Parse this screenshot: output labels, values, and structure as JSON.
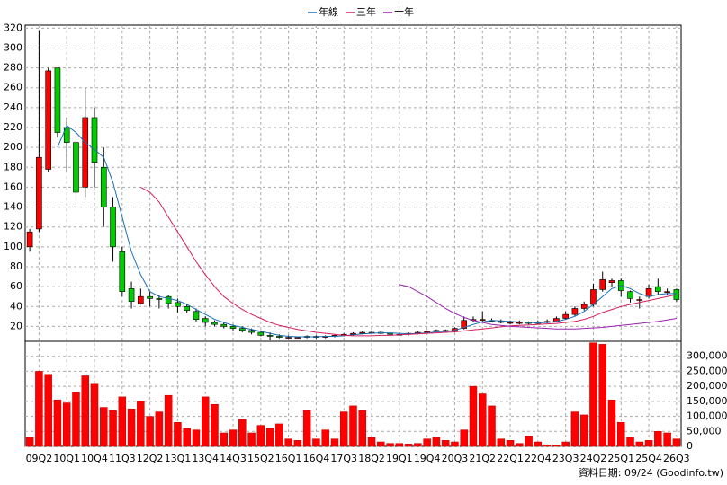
{
  "chart_data": [
    {
      "type": "candlestick",
      "categories": [
        null,
        "09Q2",
        null,
        null,
        "10Q1",
        null,
        null,
        "10Q4",
        null,
        null,
        "11Q3",
        null,
        null,
        "12Q2",
        null,
        null,
        "13Q1",
        null,
        null,
        "13Q4",
        null,
        null,
        "14Q3",
        null,
        null,
        "15Q2",
        null,
        null,
        "16Q1",
        null,
        null,
        "16Q4",
        null,
        null,
        "17Q3",
        null,
        null,
        "18Q2",
        null,
        null,
        "19Q1",
        null,
        null,
        "19Q4",
        null,
        null,
        "20Q3",
        null,
        null,
        "21Q2",
        null,
        null,
        "22Q1",
        null,
        null,
        "22Q4",
        null,
        null,
        "23Q3",
        null,
        null,
        "24Q2",
        null,
        null,
        "25Q1",
        null,
        null,
        "25Q4",
        null,
        null,
        "26Q3"
      ],
      "open": [
        100,
        118,
        178,
        280,
        220,
        205,
        160,
        230,
        180,
        140,
        95,
        58,
        43,
        50,
        48,
        50,
        44,
        40,
        35,
        28,
        24,
        22,
        20,
        18,
        16,
        14,
        11,
        10,
        9,
        9,
        9,
        10,
        9,
        10,
        11,
        12,
        13,
        14,
        14,
        13,
        12,
        12,
        13,
        14,
        15,
        16,
        15,
        18,
        26,
        27,
        26,
        25,
        24,
        23,
        24,
        23,
        24,
        25,
        28,
        32,
        38,
        42,
        57,
        64,
        66,
        55,
        47,
        50,
        60,
        55,
        57
      ],
      "high": [
        118,
        318,
        280,
        280,
        230,
        220,
        260,
        240,
        200,
        150,
        100,
        65,
        58,
        55,
        52,
        52,
        48,
        42,
        38,
        30,
        26,
        24,
        22,
        20,
        18,
        16,
        14,
        12,
        11,
        10,
        11,
        11,
        11,
        12,
        13,
        14,
        15,
        16,
        15,
        14,
        13,
        14,
        15,
        16,
        17,
        17,
        19,
        30,
        30,
        35,
        28,
        27,
        26,
        26,
        25,
        26,
        27,
        30,
        35,
        40,
        45,
        63,
        75,
        68,
        68,
        56,
        50,
        62,
        68,
        58,
        58
      ],
      "low": [
        95,
        115,
        175,
        210,
        175,
        140,
        150,
        160,
        120,
        85,
        50,
        38,
        42,
        40,
        38,
        38,
        34,
        33,
        25,
        20,
        20,
        18,
        16,
        14,
        12,
        10,
        6,
        8,
        8,
        8,
        8,
        8,
        8,
        9,
        10,
        11,
        12,
        13,
        12,
        11,
        11,
        11,
        12,
        13,
        14,
        14,
        14,
        17,
        24,
        25,
        24,
        23,
        22,
        22,
        22,
        22,
        23,
        24,
        27,
        30,
        36,
        40,
        55,
        60,
        50,
        44,
        38,
        48,
        52,
        52,
        45
      ],
      "close": [
        115,
        190,
        277,
        215,
        205,
        155,
        230,
        185,
        140,
        100,
        55,
        45,
        50,
        48,
        47,
        43,
        40,
        36,
        27,
        24,
        22,
        20,
        18,
        16,
        14,
        11,
        10,
        9,
        9,
        9,
        10,
        9,
        10,
        11,
        12,
        13,
        14,
        14,
        13,
        12,
        12,
        13,
        14,
        15,
        16,
        15,
        18,
        26,
        27,
        27,
        25,
        24,
        24,
        24,
        23,
        24,
        25,
        28,
        32,
        38,
        42,
        57,
        67,
        66,
        56,
        48,
        47,
        58,
        55,
        55,
        47
      ],
      "up_color": "#ff0000",
      "down_color": "#00cc00",
      "series": [
        {
          "name": "年線",
          "color": "#1a6fb4",
          "values": [
            null,
            null,
            null,
            200,
            222,
            215,
            205,
            198,
            190,
            165,
            130,
            95,
            72,
            55,
            50,
            48,
            46,
            42,
            37,
            32,
            27,
            24,
            21,
            19,
            17,
            15,
            13,
            11,
            10,
            9.5,
            9.5,
            9.5,
            10,
            10,
            10.5,
            11.5,
            12.5,
            13,
            13.5,
            13.5,
            13,
            12.5,
            13,
            13.5,
            14.5,
            15,
            16,
            19,
            22,
            24.5,
            26,
            25.5,
            25,
            24.5,
            24,
            23.5,
            24,
            25,
            27,
            30,
            35,
            42,
            50,
            58,
            61,
            58,
            53,
            50,
            52,
            53,
            53
          ]
        },
        {
          "name": "三年",
          "color": "#d6205a",
          "values": [
            null,
            null,
            null,
            null,
            null,
            null,
            null,
            null,
            null,
            null,
            null,
            null,
            160,
            155,
            145,
            130,
            115,
            100,
            85,
            72,
            60,
            50,
            43,
            37,
            32,
            28,
            24,
            21,
            19,
            17,
            15.5,
            14,
            13,
            12,
            11,
            10.5,
            10.5,
            10.5,
            11,
            11,
            11.5,
            12,
            12.5,
            13,
            13.5,
            14,
            14.5,
            15.5,
            16.5,
            17.5,
            18.5,
            19.5,
            20.5,
            21,
            21.5,
            22,
            22.5,
            23,
            24,
            25,
            27,
            30,
            34,
            37,
            40,
            42,
            44,
            46,
            48,
            50,
            52
          ]
        },
        {
          "name": "十年",
          "color": "#9a22b0",
          "values": [
            null,
            null,
            null,
            null,
            null,
            null,
            null,
            null,
            null,
            null,
            null,
            null,
            null,
            null,
            null,
            null,
            null,
            null,
            null,
            null,
            null,
            null,
            null,
            null,
            null,
            null,
            null,
            null,
            null,
            null,
            null,
            null,
            null,
            null,
            null,
            null,
            null,
            null,
            null,
            null,
            62,
            60,
            55,
            50,
            44,
            38,
            33,
            29,
            26,
            24,
            22,
            21,
            20,
            19.5,
            19,
            18.5,
            18,
            17.5,
            17.5,
            17.5,
            18,
            18.5,
            19,
            20,
            21,
            22,
            23,
            24,
            25,
            26.5,
            28
          ]
        }
      ],
      "ylim": [
        5,
        323
      ],
      "yticks": [
        20,
        40,
        60,
        80,
        100,
        120,
        140,
        160,
        180,
        200,
        220,
        240,
        260,
        280,
        300,
        320
      ],
      "grid": true,
      "legend": "top"
    },
    {
      "type": "bar",
      "values": [
        30000,
        250000,
        240000,
        155000,
        145000,
        180000,
        235000,
        210000,
        130000,
        120000,
        165000,
        125000,
        150000,
        100000,
        115000,
        170000,
        80000,
        60000,
        55000,
        165000,
        140000,
        45000,
        55000,
        90000,
        45000,
        70000,
        60000,
        75000,
        25000,
        20000,
        120000,
        25000,
        55000,
        25000,
        115000,
        135000,
        120000,
        30000,
        15000,
        10000,
        10000,
        8000,
        10000,
        25000,
        30000,
        20000,
        15000,
        55000,
        200000,
        175000,
        135000,
        25000,
        20000,
        10000,
        35000,
        15000,
        5000,
        5000,
        15000,
        115000,
        105000,
        345000,
        340000,
        155000,
        80000,
        30000,
        15000,
        20000,
        50000,
        45000,
        25000
      ],
      "color": "#ff0000",
      "ylim": [
        0,
        350000
      ],
      "yticks": [
        0,
        {
          "value": 50000,
          "label": "50,000"
        },
        {
          "value": 100000,
          "label": "100,000"
        },
        {
          "value": 150000,
          "label": "150,000"
        },
        {
          "value": 200000,
          "label": "200,000"
        },
        {
          "value": 250000,
          "label": "250,000"
        },
        {
          "value": 300000,
          "label": "300,000"
        }
      ],
      "grid": true
    }
  ],
  "footer": "資料日期: 09/24 (Goodinfo.tw)"
}
